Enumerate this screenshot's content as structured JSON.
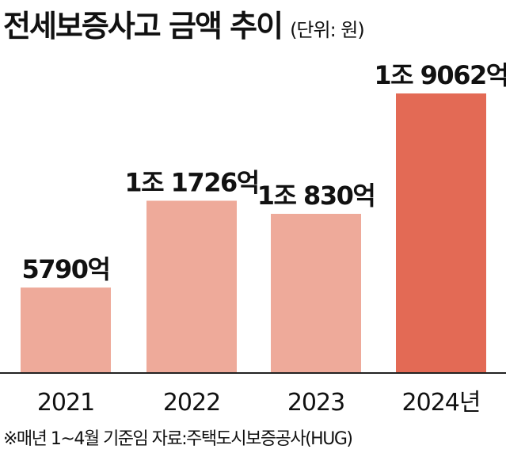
{
  "title": "전세보증사고 금액 추이",
  "unit": "(단위: 원)",
  "footnote": "※매년 1~4월 기준임 자료:주택도시보증공사(HUG)",
  "colors": {
    "bar": "#eeaa9a",
    "highlight": "#e36a55",
    "axis": "#222222",
    "text": "#111111"
  },
  "chart_data": {
    "type": "bar",
    "categories": [
      "2021",
      "2022",
      "2023",
      "2024년"
    ],
    "values": [
      5790,
      11726,
      10830,
      19062
    ],
    "value_unit": "억",
    "data_labels": [
      "5790억",
      "1조 1726억",
      "1조 830억",
      "1조 9062억"
    ],
    "highlight_index": 3,
    "ylim": [
      0,
      19062
    ],
    "grid": false,
    "legend": "none"
  }
}
